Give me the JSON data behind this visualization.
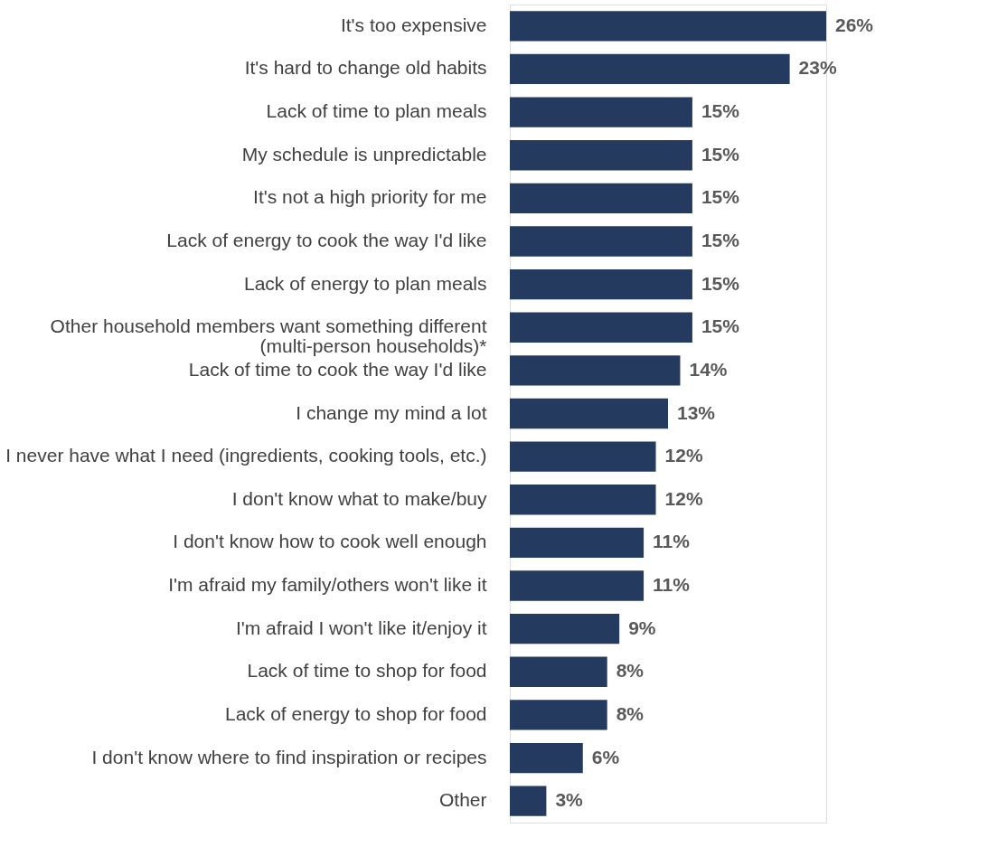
{
  "chart_data": {
    "type": "bar",
    "orientation": "horizontal",
    "categories": [
      "It's too expensive",
      "It's hard to change old habits",
      "Lack of time to plan meals",
      "My schedule is unpredictable",
      "It's not a high priority for me",
      "Lack of energy to cook the way I'd like",
      "Lack of energy to plan meals",
      "Other household members want something different\n(multi-person households)*",
      "Lack of time to cook the way I'd like",
      "I change my mind a lot",
      "I never have what I need (ingredients, cooking tools, etc.)",
      "I don't know what to make/buy",
      "I don't know how to cook well enough",
      "I'm afraid my family/others won't like it",
      "I'm afraid I won't like it/enjoy it",
      "Lack of time to shop for food",
      "Lack of energy to shop for food",
      "I don't know where to find inspiration or recipes",
      "Other"
    ],
    "values": [
      26,
      23,
      15,
      15,
      15,
      15,
      15,
      15,
      14,
      13,
      12,
      12,
      11,
      11,
      9,
      8,
      8,
      6,
      3
    ],
    "value_labels": [
      "26%",
      "23%",
      "15%",
      "15%",
      "15%",
      "15%",
      "15%",
      "15%",
      "14%",
      "13%",
      "12%",
      "12%",
      "11%",
      "11%",
      "9%",
      "8%",
      "8%",
      "6%",
      "3%"
    ],
    "color": "#243a5e"
  }
}
